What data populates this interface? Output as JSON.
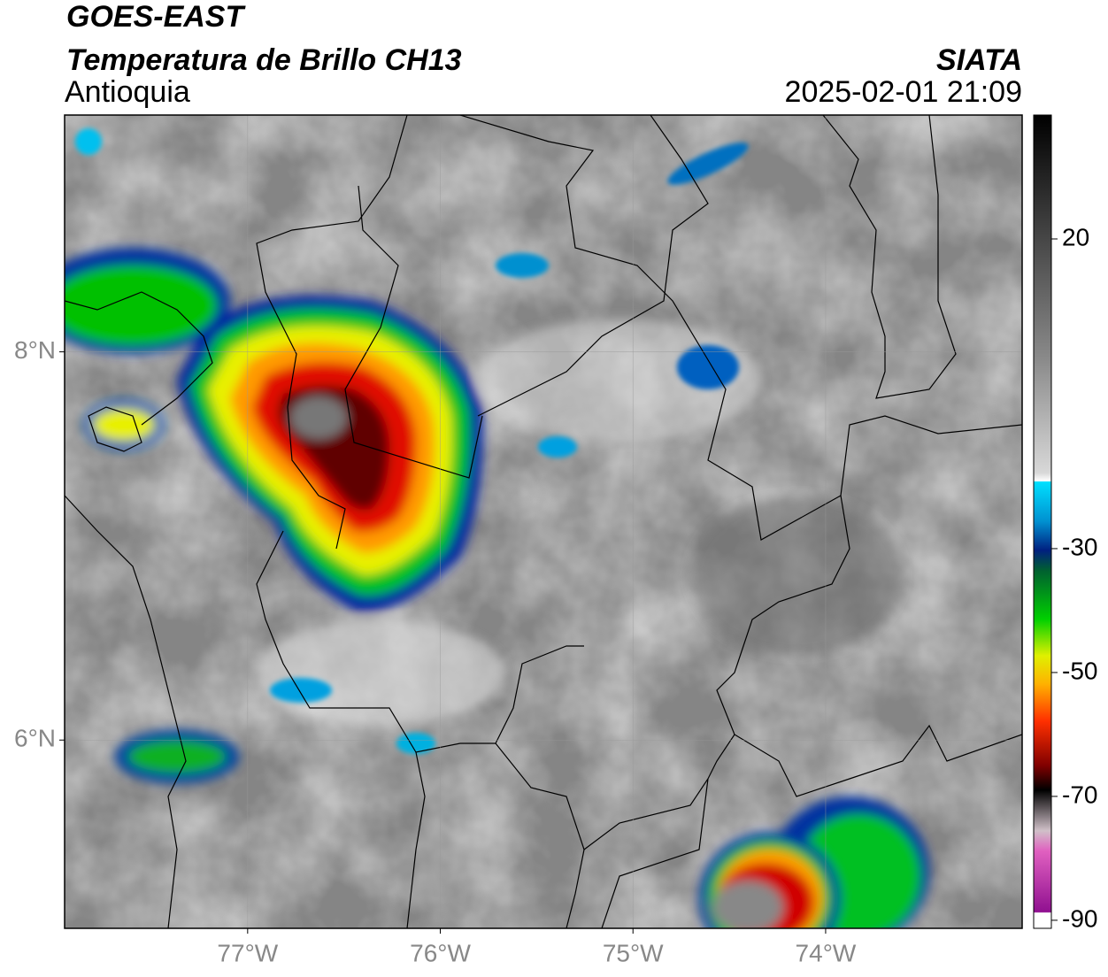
{
  "header": {
    "title": "GOES-EAST",
    "subtitle": "Temperatura de Brillo CH13",
    "region": "Antioquia",
    "source": "SIATA",
    "datetime": "2025-02-01 21:09"
  },
  "map": {
    "xlim": [
      -77.95,
      -72.98
    ],
    "ylim": [
      5.03,
      9.22
    ],
    "xticks": [
      {
        "value": -77,
        "label": "77°W"
      },
      {
        "value": -76,
        "label": "76°W"
      },
      {
        "value": -75,
        "label": "75°W"
      },
      {
        "value": -74,
        "label": "74°W"
      }
    ],
    "yticks": [
      {
        "value": 8,
        "label": "8°N"
      },
      {
        "value": 6,
        "label": "6°N"
      }
    ],
    "grid": true
  },
  "colorbar": {
    "ylim": [
      -91.3,
      40
    ],
    "yticks": [
      20,
      -30,
      -50,
      -70,
      -90
    ]
  }
}
